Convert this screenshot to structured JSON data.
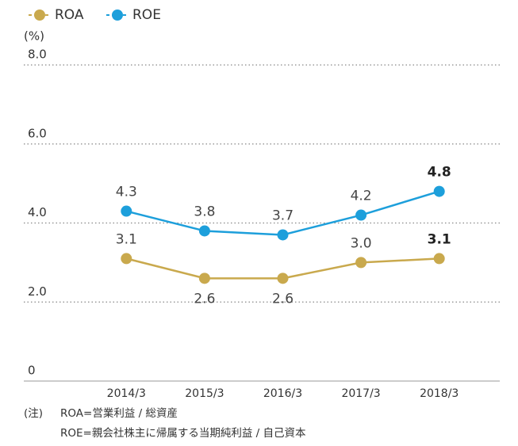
{
  "chart_data": {
    "type": "line",
    "y_unit": "(%)",
    "categories": [
      "2014/3",
      "2015/3",
      "2016/3",
      "2017/3",
      "2018/3"
    ],
    "series": [
      {
        "name": "ROA",
        "color": "#c9a94d",
        "values": [
          3.1,
          2.6,
          2.6,
          3.0,
          3.1
        ],
        "value_labels": [
          "3.1",
          "2.6",
          "2.6",
          "3.0",
          "3.1"
        ]
      },
      {
        "name": "ROE",
        "color": "#1d9fdb",
        "values": [
          4.3,
          3.8,
          3.7,
          4.2,
          4.8
        ],
        "value_labels": [
          "4.3",
          "3.8",
          "3.7",
          "4.2",
          "4.8"
        ]
      }
    ],
    "ylim": [
      0,
      8
    ],
    "yticks": [
      0,
      {
        "value": 2,
        "label": "2.0"
      },
      {
        "value": 4,
        "label": "4.0"
      },
      {
        "value": 6,
        "label": "6.0"
      },
      {
        "value": 8,
        "label": "8.0"
      }
    ],
    "grid": true,
    "notes": [
      "(注)",
      "ROA=営業利益 / 総資産",
      "ROE=親会社株主に帰属する当期純利益 / 自己資本"
    ]
  }
}
